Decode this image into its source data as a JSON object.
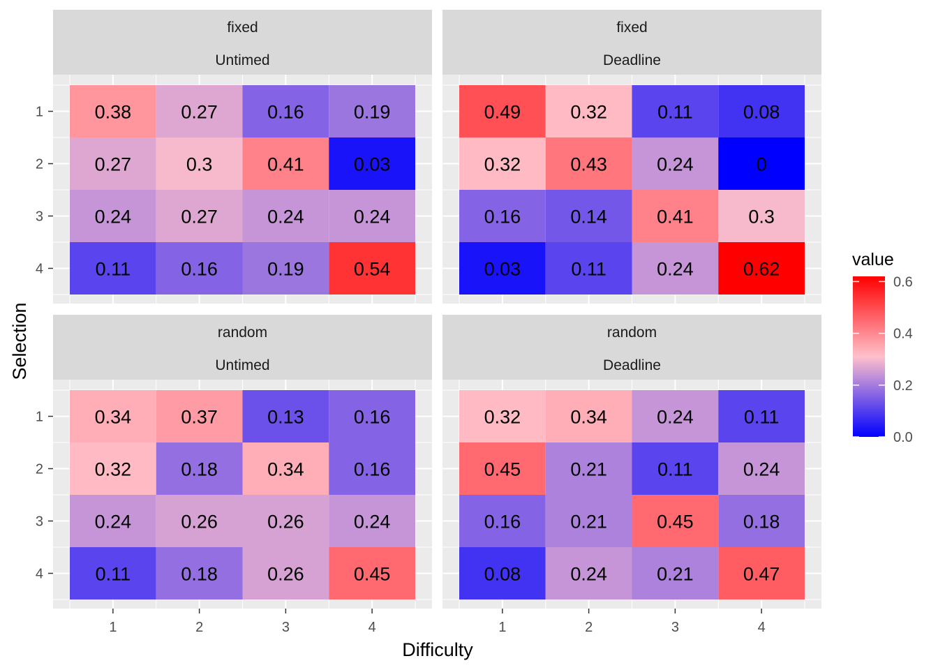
{
  "chart_data": {
    "type": "heatmap",
    "xlabel": "Difficulty",
    "ylabel": "Selection",
    "x_categories": [
      "1",
      "2",
      "3",
      "4"
    ],
    "y_categories": [
      "1",
      "2",
      "3",
      "4"
    ],
    "legend": {
      "title": "value",
      "ticks": [
        "0.0",
        "0.2",
        "0.4",
        "0.6"
      ],
      "tick_values": [
        0.0,
        0.2,
        0.4,
        0.6
      ],
      "range": [
        0,
        0.62
      ],
      "position": "right",
      "colors": {
        "low": "#0000FF",
        "mid": "#FFC0CB",
        "high": "#FF0000"
      }
    },
    "panels": [
      {
        "strip_top": "fixed",
        "strip_bottom": "Untimed",
        "values": [
          [
            0.38,
            0.27,
            0.16,
            0.19
          ],
          [
            0.27,
            0.3,
            0.41,
            0.03
          ],
          [
            0.24,
            0.27,
            0.24,
            0.24
          ],
          [
            0.11,
            0.16,
            0.19,
            0.54
          ]
        ],
        "labels": [
          [
            "0.38",
            "0.27",
            "0.16",
            "0.19"
          ],
          [
            "0.27",
            "0.3",
            "0.41",
            "0.03"
          ],
          [
            "0.24",
            "0.27",
            "0.24",
            "0.24"
          ],
          [
            "0.11",
            "0.16",
            "0.19",
            "0.54"
          ]
        ]
      },
      {
        "strip_top": "fixed",
        "strip_bottom": "Deadline",
        "values": [
          [
            0.49,
            0.32,
            0.11,
            0.08
          ],
          [
            0.32,
            0.43,
            0.24,
            0
          ],
          [
            0.16,
            0.14,
            0.41,
            0.3
          ],
          [
            0.03,
            0.11,
            0.24,
            0.62
          ]
        ],
        "labels": [
          [
            "0.49",
            "0.32",
            "0.11",
            "0.08"
          ],
          [
            "0.32",
            "0.43",
            "0.24",
            "0"
          ],
          [
            "0.16",
            "0.14",
            "0.41",
            "0.3"
          ],
          [
            "0.03",
            "0.11",
            "0.24",
            "0.62"
          ]
        ]
      },
      {
        "strip_top": "random",
        "strip_bottom": "Untimed",
        "values": [
          [
            0.34,
            0.37,
            0.13,
            0.16
          ],
          [
            0.32,
            0.18,
            0.34,
            0.16
          ],
          [
            0.24,
            0.26,
            0.26,
            0.24
          ],
          [
            0.11,
            0.18,
            0.26,
            0.45
          ]
        ],
        "labels": [
          [
            "0.34",
            "0.37",
            "0.13",
            "0.16"
          ],
          [
            "0.32",
            "0.18",
            "0.34",
            "0.16"
          ],
          [
            "0.24",
            "0.26",
            "0.26",
            "0.24"
          ],
          [
            "0.11",
            "0.18",
            "0.26",
            "0.45"
          ]
        ]
      },
      {
        "strip_top": "random",
        "strip_bottom": "Deadline",
        "values": [
          [
            0.32,
            0.34,
            0.24,
            0.11
          ],
          [
            0.45,
            0.21,
            0.11,
            0.24
          ],
          [
            0.16,
            0.21,
            0.45,
            0.18
          ],
          [
            0.08,
            0.24,
            0.21,
            0.47
          ]
        ],
        "labels": [
          [
            "0.32",
            "0.34",
            "0.24",
            "0.11"
          ],
          [
            "0.45",
            "0.21",
            "0.11",
            "0.24"
          ],
          [
            "0.16",
            "0.21",
            "0.45",
            "0.18"
          ],
          [
            "0.08",
            "0.24",
            "0.21",
            "0.47"
          ]
        ]
      }
    ]
  }
}
